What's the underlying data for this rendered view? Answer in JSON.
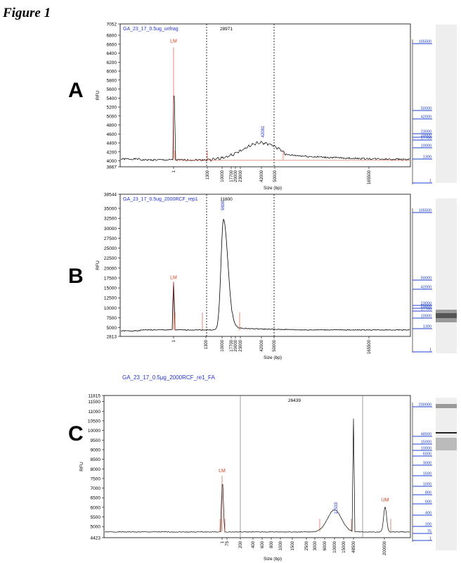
{
  "figure_title": "Figure 1",
  "colors": {
    "trace": "#000000",
    "marker": "#d23b1b",
    "blue_label": "#2233cc",
    "ladder": "#1f3fd0"
  },
  "chart_data": [
    {
      "type": "line",
      "panel_letter": "A",
      "title": "GA_23_17_0.5ug_unfrag",
      "xlabel": "Size (bp)",
      "ylabel": "RFU",
      "ylim": [
        3867,
        7052
      ],
      "y_ticks": [
        "3867",
        "4000",
        "4200",
        "4400",
        "4600",
        "4800",
        "5000",
        "5200",
        "5400",
        "5600",
        "5800",
        "6000",
        "6200",
        "6400",
        "6600",
        "6800",
        "7052"
      ],
      "x_ticks": [
        "1",
        "1300",
        "10000",
        "17700",
        "20000",
        "23000",
        "42000",
        "50000",
        "165500"
      ],
      "region_label": "28971",
      "peak_label": "42081",
      "marker_label": "LM",
      "ladder_labels": [
        "165500",
        "50000",
        "42000",
        "23000",
        "20000",
        "17700",
        "10000",
        "1300",
        "1"
      ]
    },
    {
      "type": "line",
      "panel_letter": "B",
      "title": "GA_23_17_0.5ug_2000RCF_rep1",
      "xlabel": "Size (bp)",
      "ylabel": "RFU",
      "ylim": [
        2813,
        38544
      ],
      "y_ticks": [
        "2813",
        "5000",
        "7500",
        "10000",
        "12500",
        "15000",
        "17500",
        "20000",
        "22500",
        "25000",
        "27500",
        "30000",
        "32500",
        "35000",
        "38544"
      ],
      "x_ticks": [
        "1",
        "1300",
        "10000",
        "17700",
        "20000",
        "23000",
        "42000",
        "50000",
        "165500"
      ],
      "region_label": "11800",
      "peak_label": "9808",
      "marker_label": "LM",
      "ladder_labels": [
        "165500",
        "50000",
        "42000",
        "23000",
        "20000",
        "17700",
        "10000",
        "1300",
        "1"
      ]
    },
    {
      "type": "line",
      "panel_letter": "C",
      "title": "GA_23_17_0.5μg_2000RCF_re1_FA",
      "xlabel": "Size (bp)",
      "ylabel": "RFU",
      "ylim": [
        4423,
        11815
      ],
      "y_ticks": [
        "4423",
        "5000",
        "5500",
        "6000",
        "6500",
        "7000",
        "7500",
        "8000",
        "8500",
        "9000",
        "9500",
        "10000",
        "10500",
        "11000",
        "11500",
        "11815"
      ],
      "x_ticks": [
        "1",
        "75",
        "200",
        "400",
        "600",
        "800",
        "1000",
        "1500",
        "2500",
        "3000",
        "6000",
        "10000",
        "15000",
        "48500",
        "200000"
      ],
      "region_label": "26439",
      "peak_label": "12533",
      "marker_label": "LM",
      "marker_label_2": "UM",
      "ladder_labels": [
        "200000",
        "48500",
        "15000",
        "10000",
        "6000",
        "3000",
        "1500",
        "1000",
        "800",
        "600",
        "400",
        "200",
        "75",
        "1"
      ]
    }
  ]
}
